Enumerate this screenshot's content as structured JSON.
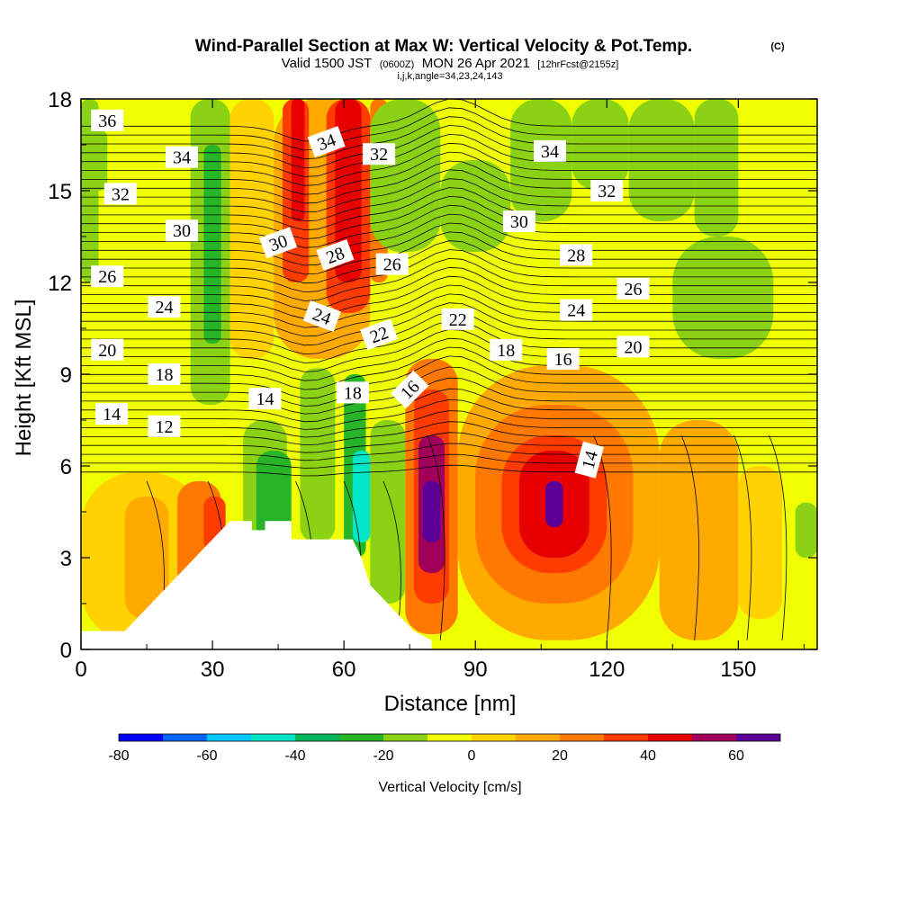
{
  "header": {
    "title": "Wind-Parallel Section at Max W: Vertical Velocity & Pot.Temp.",
    "copyright": "(C)",
    "subtitle_main_a": "Valid 1500 JST",
    "subtitle_small_a": "(0600Z)",
    "subtitle_main_b": "MON 26 Apr 2021",
    "subtitle_small_b": "[12hrFcst@2155z]",
    "indices": "i,j,k,angle=34,23,24,143"
  },
  "chart_data": {
    "type": "heatmap",
    "title": "Wind-Parallel Section at Max W: Vertical Velocity & Pot.Temp.",
    "xlabel": "Distance [nm]",
    "ylabel": "Height [Kft MSL]",
    "xlim": [
      0,
      168
    ],
    "ylim": [
      0,
      18
    ],
    "x_ticks": [
      0,
      30,
      60,
      90,
      120,
      150
    ],
    "y_ticks": [
      0,
      3,
      6,
      9,
      12,
      15,
      18
    ],
    "colorbar": {
      "label": "Vertical Velocity [cm/s]",
      "ticks": [
        -80,
        -60,
        -40,
        -20,
        0,
        20,
        40,
        60
      ],
      "range": [
        -80,
        70
      ],
      "colors": [
        "#0000ff",
        "#0064ff",
        "#00c8ff",
        "#00e6c8",
        "#00b45a",
        "#28b428",
        "#8cd214",
        "#f0ff00",
        "#ffd200",
        "#ffaa00",
        "#ff7800",
        "#ff3c00",
        "#e60000",
        "#a0005a",
        "#5a0096"
      ]
    },
    "terrain_profile": {
      "x": [
        0,
        10,
        12,
        14,
        16,
        18,
        20,
        22,
        24,
        26,
        28,
        30,
        32,
        34,
        34,
        39,
        39,
        42,
        42,
        48,
        48,
        62,
        64,
        66,
        68,
        70,
        72,
        74,
        76,
        80
      ],
      "y": [
        0.6,
        0.6,
        0.9,
        1.2,
        1.5,
        1.8,
        2.1,
        2.4,
        2.7,
        3.0,
        3.3,
        3.6,
        3.9,
        4.2,
        4.2,
        4.2,
        3.9,
        3.9,
        4.2,
        4.2,
        3.6,
        3.6,
        3.0,
        2.1,
        1.8,
        1.5,
        1.2,
        0.9,
        0.6,
        0.3
      ]
    },
    "velocity_cells": [
      {
        "x": 0,
        "x2": 28,
        "y": 0.2,
        "y2": 5.8,
        "value": 5
      },
      {
        "x": 22,
        "x2": 32,
        "y": 1.5,
        "y2": 5.5,
        "value": 25
      },
      {
        "x": 28,
        "x2": 33,
        "y": 3.2,
        "y2": 5.0,
        "value": 35
      },
      {
        "x": 10,
        "x2": 20,
        "y": 1.0,
        "y2": 5.0,
        "value": 15
      },
      {
        "x": 37,
        "x2": 47,
        "y": 3.5,
        "y2": 7.5,
        "value": -15
      },
      {
        "x": 40,
        "x2": 48,
        "y": 3.5,
        "y2": 6.5,
        "value": -25
      },
      {
        "x": 50,
        "x2": 58,
        "y": 3.5,
        "y2": 9.2,
        "value": -18
      },
      {
        "x": 60,
        "x2": 65,
        "y": 3.0,
        "y2": 9.0,
        "value": -25
      },
      {
        "x": 62,
        "x2": 66,
        "y": 3.5,
        "y2": 6.5,
        "value": -45
      },
      {
        "x": 66,
        "x2": 74,
        "y": 1.5,
        "y2": 7.5,
        "value": -15
      },
      {
        "x": 74,
        "x2": 86,
        "y": 0.5,
        "y2": 9.5,
        "value": 25
      },
      {
        "x": 76,
        "x2": 84,
        "y": 1.5,
        "y2": 8.5,
        "value": 38
      },
      {
        "x": 77,
        "x2": 83,
        "y": 2.5,
        "y2": 7.0,
        "value": 55
      },
      {
        "x": 78,
        "x2": 82,
        "y": 3.5,
        "y2": 5.5,
        "value": 65
      },
      {
        "x": 86,
        "x2": 132,
        "y": 0.3,
        "y2": 9.3,
        "value": 15
      },
      {
        "x": 90,
        "x2": 126,
        "y": 1.5,
        "y2": 8.0,
        "value": 25
      },
      {
        "x": 96,
        "x2": 120,
        "y": 2.5,
        "y2": 7.0,
        "value": 35
      },
      {
        "x": 100,
        "x2": 116,
        "y": 3.0,
        "y2": 6.5,
        "value": 45
      },
      {
        "x": 106,
        "x2": 110,
        "y": 4.0,
        "y2": 5.5,
        "value": 60
      },
      {
        "x": 132,
        "x2": 150,
        "y": 0.3,
        "y2": 7.5,
        "value": 10
      },
      {
        "x": 150,
        "x2": 160,
        "y": 1.0,
        "y2": 6.0,
        "value": 8
      },
      {
        "x": 163,
        "x2": 168,
        "y": 3.0,
        "y2": 4.8,
        "value": -15
      },
      {
        "x": 0,
        "x2": 4,
        "y": 12.0,
        "y2": 18.0,
        "value": -15
      },
      {
        "x": 2,
        "x2": 6,
        "y": 15.0,
        "y2": 17.0,
        "value": -15
      },
      {
        "x": 25,
        "x2": 34,
        "y": 8.0,
        "y2": 18.0,
        "value": -18
      },
      {
        "x": 28,
        "x2": 32,
        "y": 10.0,
        "y2": 16.5,
        "value": -25
      },
      {
        "x": 34,
        "x2": 44,
        "y": 9.5,
        "y2": 18.0,
        "value": 8
      },
      {
        "x": 44,
        "x2": 66,
        "y": 9.5,
        "y2": 18.0,
        "value": 18
      },
      {
        "x": 46,
        "x2": 52,
        "y": 12.0,
        "y2": 18.0,
        "value": 30
      },
      {
        "x": 48,
        "x2": 51,
        "y": 14.0,
        "y2": 18.0,
        "value": 40
      },
      {
        "x": 56,
        "x2": 66,
        "y": 11.0,
        "y2": 18.0,
        "value": 30
      },
      {
        "x": 58,
        "x2": 64,
        "y": 12.0,
        "y2": 18.0,
        "value": 40
      },
      {
        "x": 66,
        "x2": 70,
        "y": 12.0,
        "y2": 18.0,
        "value": 20
      },
      {
        "x": 70,
        "x2": 78,
        "y": 17.0,
        "y2": 18.0,
        "value": -40
      },
      {
        "x": 66,
        "x2": 82,
        "y": 13.0,
        "y2": 18.0,
        "value": -15
      },
      {
        "x": 82,
        "x2": 98,
        "y": 13.0,
        "y2": 16.0,
        "value": -15
      },
      {
        "x": 98,
        "x2": 112,
        "y": 14.0,
        "y2": 18.0,
        "value": -18
      },
      {
        "x": 112,
        "x2": 125,
        "y": 15.0,
        "y2": 18.0,
        "value": -12
      },
      {
        "x": 125,
        "x2": 140,
        "y": 14.0,
        "y2": 18.0,
        "value": -12
      },
      {
        "x": 135,
        "x2": 158,
        "y": 9.5,
        "y2": 13.5,
        "value": -12
      },
      {
        "x": 140,
        "x2": 150,
        "y": 13.5,
        "y2": 18.0,
        "value": -12
      }
    ],
    "theta_labels": [
      {
        "text": "36",
        "x": 6,
        "y": 17.3,
        "angle": 0
      },
      {
        "text": "34",
        "x": 23,
        "y": 16.1,
        "angle": 0
      },
      {
        "text": "32",
        "x": 9,
        "y": 14.9,
        "angle": 0
      },
      {
        "text": "30",
        "x": 23,
        "y": 13.7,
        "angle": 0
      },
      {
        "text": "26",
        "x": 6,
        "y": 12.2,
        "angle": 0
      },
      {
        "text": "24",
        "x": 19,
        "y": 11.2,
        "angle": 0
      },
      {
        "text": "20",
        "x": 6,
        "y": 9.8,
        "angle": 0
      },
      {
        "text": "18",
        "x": 19,
        "y": 9.0,
        "angle": 0
      },
      {
        "text": "14",
        "x": 7,
        "y": 7.7,
        "angle": 0
      },
      {
        "text": "12",
        "x": 19,
        "y": 7.3,
        "angle": 0
      },
      {
        "text": "34",
        "x": 56,
        "y": 16.6,
        "angle": -20
      },
      {
        "text": "32",
        "x": 68,
        "y": 16.2,
        "angle": 0
      },
      {
        "text": "30",
        "x": 45,
        "y": 13.3,
        "angle": -20
      },
      {
        "text": "28",
        "x": 58,
        "y": 12.9,
        "angle": -20
      },
      {
        "text": "26",
        "x": 71,
        "y": 12.6,
        "angle": 0
      },
      {
        "text": "24",
        "x": 55,
        "y": 10.9,
        "angle": 20
      },
      {
        "text": "22",
        "x": 68,
        "y": 10.3,
        "angle": -20
      },
      {
        "text": "14",
        "x": 42,
        "y": 8.2,
        "angle": 0
      },
      {
        "text": "18",
        "x": 62,
        "y": 8.4,
        "angle": 0
      },
      {
        "text": "16",
        "x": 75,
        "y": 8.5,
        "angle": -45
      },
      {
        "text": "22",
        "x": 86,
        "y": 10.8,
        "angle": 0
      },
      {
        "text": "18",
        "x": 97,
        "y": 9.8,
        "angle": 0
      },
      {
        "text": "16",
        "x": 110,
        "y": 9.5,
        "angle": 0
      },
      {
        "text": "20",
        "x": 126,
        "y": 9.9,
        "angle": 0
      },
      {
        "text": "24",
        "x": 113,
        "y": 11.1,
        "angle": 0
      },
      {
        "text": "26",
        "x": 126,
        "y": 11.8,
        "angle": 0
      },
      {
        "text": "28",
        "x": 113,
        "y": 12.9,
        "angle": 0
      },
      {
        "text": "30",
        "x": 100,
        "y": 14.0,
        "angle": 0
      },
      {
        "text": "32",
        "x": 120,
        "y": 15.0,
        "angle": 0
      },
      {
        "text": "34",
        "x": 107,
        "y": 16.3,
        "angle": 0
      },
      {
        "text": "14",
        "x": 116,
        "y": 6.2,
        "angle": -75
      }
    ]
  }
}
